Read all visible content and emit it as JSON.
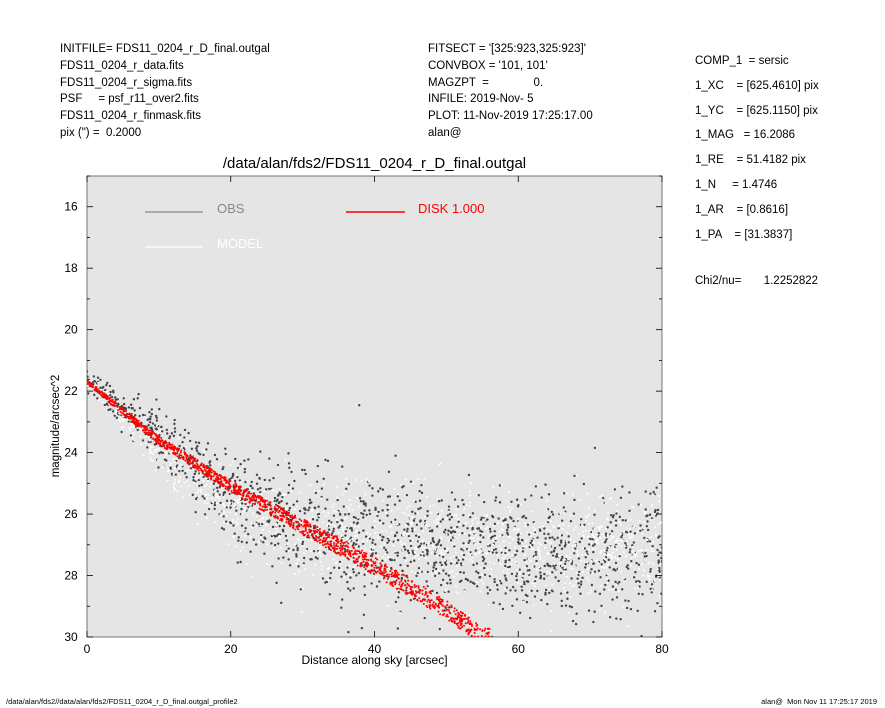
{
  "header_left": [
    "INITFILE= FDS11_0204_r_D_final.outgal",
    "FDS11_0204_r_data.fits",
    "FDS11_0204_r_sigma.fits",
    "PSF     = psf_r11_over2.fits",
    "FDS11_0204_r_finmask.fits",
    "pix (\") =  0.2000"
  ],
  "header_mid": [
    "FITSECT = '[325:923,325:923]'",
    "CONVBOX = '101, 101'",
    "MAGZPT  =              0.",
    "INFILE: 2019-Nov- 5",
    "PLOT: 11-Nov-2019 17:25:17.00",
    "alan@"
  ],
  "params": [
    "COMP_1  = sersic",
    "1_XC    = [625.4610] pix",
    "1_YC    = [625.1150] pix",
    "1_MAG   = 16.2086",
    "1_RE    = 51.4182 pix",
    "1_N     = 1.4746",
    "1_AR    = [0.8616]",
    "1_PA    = [31.3837]"
  ],
  "chi2": "Chi2/nu=       1.2252822",
  "footer_left": "/data/alan/fds2//data/alan/fds2/FDS11_0204_r_D_final.outgal_profile2",
  "footer_right": "alan@  Mon Nov 11 17:25:17 2019",
  "colors": {
    "plot_bg": "#e5e5e5",
    "obs": "#444444",
    "model": "#ffffff",
    "disk": "#ff0000",
    "obs_legend": "#888888"
  },
  "chart_data": {
    "type": "scatter",
    "title": "/data/alan/fds2/FDS11_0204_r_D_final.outgal",
    "xlabel": "Distance along sky [arcsec]",
    "ylabel": "magnitude/arcsec^2",
    "xlim": [
      0,
      80
    ],
    "ylim": [
      30,
      15
    ],
    "x_ticks": [
      0,
      20,
      40,
      60,
      80
    ],
    "y_ticks": [
      16,
      18,
      20,
      22,
      24,
      26,
      28,
      30
    ],
    "legend": [
      {
        "name": "OBS",
        "color": "#888888"
      },
      {
        "name": "MODEL",
        "color": "#ffffff"
      },
      {
        "name": "DISK  1.000",
        "color": "#ff0000"
      }
    ],
    "series": [
      {
        "name": "OBS",
        "trend": [
          [
            0,
            21.7
          ],
          [
            5,
            22.6
          ],
          [
            10,
            23.5
          ],
          [
            15,
            24.5
          ],
          [
            20,
            25.5
          ],
          [
            30,
            26.5
          ],
          [
            40,
            27.0
          ],
          [
            60,
            27.2
          ],
          [
            80,
            27.3
          ]
        ]
      },
      {
        "name": "MODEL",
        "trend": [
          [
            0,
            21.7
          ],
          [
            10,
            24.0
          ],
          [
            20,
            25.8
          ],
          [
            30,
            26.5
          ],
          [
            40,
            26.8
          ],
          [
            60,
            27.0
          ],
          [
            80,
            27.0
          ]
        ]
      },
      {
        "name": "DISK  1.000",
        "band_center": [
          [
            0,
            21.7
          ],
          [
            10,
            23.6
          ],
          [
            20,
            25.1
          ],
          [
            30,
            26.4
          ],
          [
            40,
            27.7
          ],
          [
            50,
            29.1
          ],
          [
            55,
            30.0
          ]
        ],
        "band_halfwidth": 0.25
      }
    ]
  }
}
